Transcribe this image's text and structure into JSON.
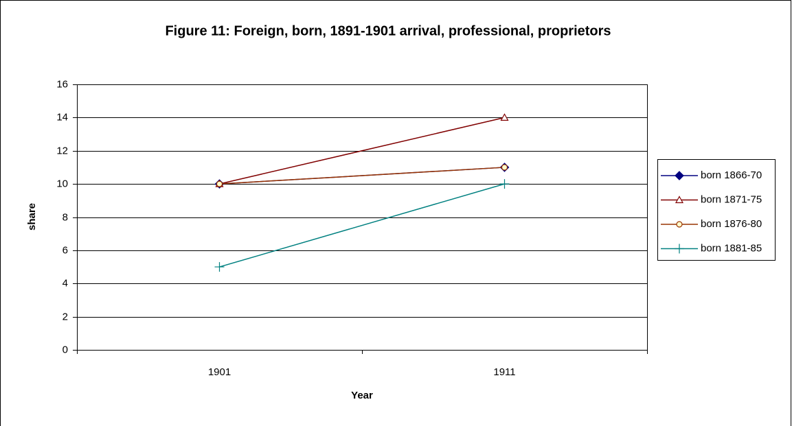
{
  "chart_data": {
    "type": "line",
    "title": "Figure 11: Foreign, born, 1891-1901 arrival, professional, proprietors",
    "x_label": "Year",
    "y_label": "share",
    "categories": [
      "1901",
      "1911"
    ],
    "series": [
      {
        "name": "born 1866-70",
        "color": "#000080",
        "marker": "diamond",
        "marker_fill": "#000080",
        "values": [
          10,
          11
        ]
      },
      {
        "name": "born 1871-75",
        "color": "#800000",
        "marker": "triangle",
        "marker_fill": "#ffffff",
        "values": [
          10,
          14
        ]
      },
      {
        "name": "born 1876-80",
        "color": "#993300",
        "marker": "circle",
        "marker_fill": "#ffffcc",
        "values": [
          10,
          11
        ]
      },
      {
        "name": "born 1881-85",
        "color": "#008080",
        "marker": "plus",
        "marker_fill": "none",
        "values": [
          5,
          10
        ]
      }
    ],
    "ylim": [
      0,
      16
    ],
    "yticks": [
      0,
      2,
      4,
      6,
      8,
      10,
      12,
      14,
      16
    ],
    "grid": true,
    "legend": "right"
  }
}
